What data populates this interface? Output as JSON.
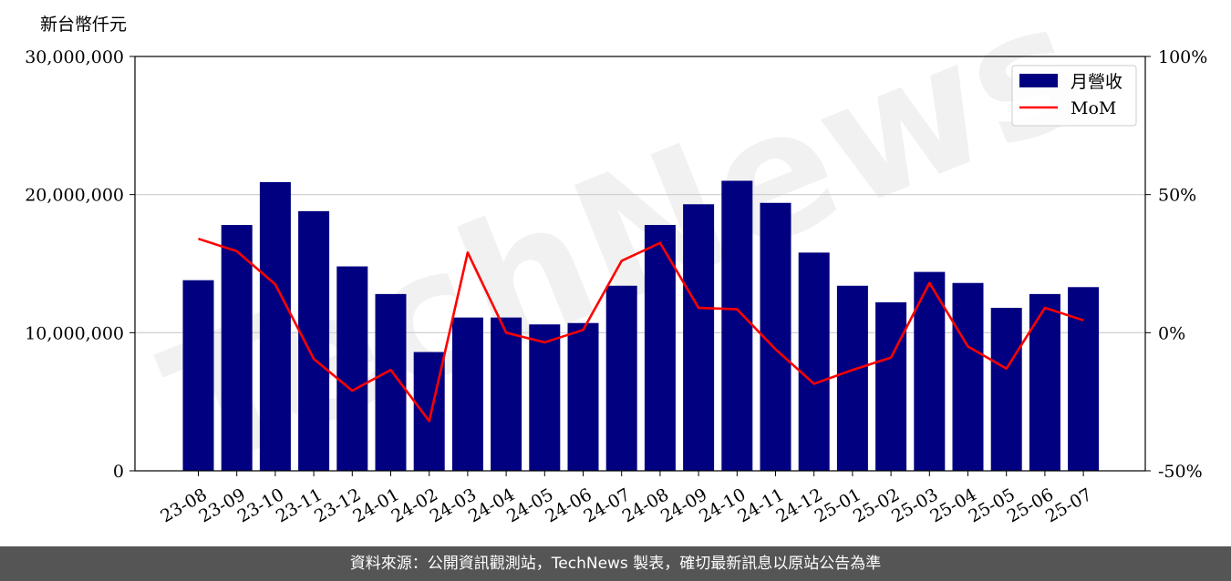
{
  "chart_data": {
    "type": "bar",
    "ylabel": "新台幣仟元",
    "categories": [
      "23-08",
      "23-09",
      "23-10",
      "23-11",
      "23-12",
      "24-01",
      "24-02",
      "24-03",
      "24-04",
      "24-05",
      "24-06",
      "24-07",
      "24-08",
      "24-09",
      "24-10",
      "24-11",
      "24-12",
      "25-01",
      "25-02",
      "25-03",
      "25-04",
      "25-05",
      "25-06",
      "25-07"
    ],
    "series": [
      {
        "name": "月營收",
        "axis": "left",
        "type": "bar",
        "color": "#000080",
        "values": [
          13800000,
          17800000,
          20900000,
          18800000,
          14800000,
          12800000,
          8600000,
          11100000,
          11100000,
          10600000,
          10700000,
          13400000,
          17800000,
          19300000,
          21000000,
          19400000,
          15800000,
          13400000,
          12200000,
          14400000,
          13600000,
          11800000,
          12800000,
          13300000
        ]
      },
      {
        "name": "MoM",
        "axis": "right",
        "type": "line",
        "color": "#ff0000",
        "values": [
          34,
          29.5,
          17.5,
          -9.5,
          -21,
          -13.5,
          -32,
          29,
          0,
          -3.5,
          1,
          26,
          32.5,
          9,
          8.5,
          -6,
          -18.5,
          -13.5,
          -9,
          18,
          -5,
          -13,
          9,
          4.5
        ]
      }
    ],
    "ylim_left": [
      0,
      30000000
    ],
    "yticks_left": [
      "0",
      "10,000,000",
      "20,000,000",
      "30,000,000"
    ],
    "ylim_right": [
      -50,
      100
    ],
    "yticks_right": [
      "-50%",
      "0%",
      "50%",
      "100%"
    ],
    "grid": true,
    "legend_position": "top-right"
  },
  "watermark": "TechNews",
  "footer": "資料來源：公開資訊觀測站，TechNews 製表，確切最新訊息以原站公告為準"
}
